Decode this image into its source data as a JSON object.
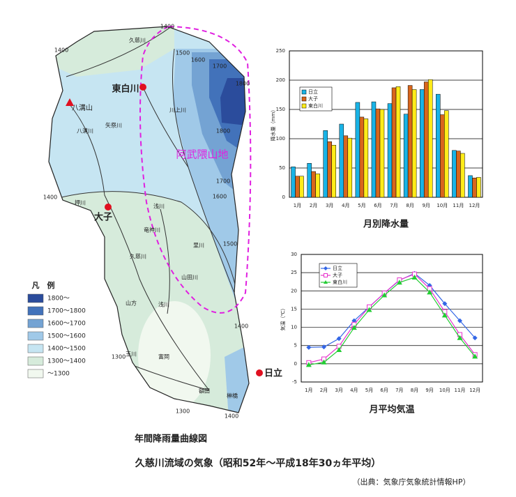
{
  "chart_data": [
    {
      "type": "bar",
      "title": "月別降水量",
      "y_label": "降水量（mm）",
      "categories": [
        "1月",
        "2月",
        "3月",
        "4月",
        "5月",
        "6月",
        "7月",
        "8月",
        "9月",
        "10月",
        "11月",
        "12月"
      ],
      "series": [
        {
          "name": "日立",
          "color": "#19b3e6",
          "values": [
            52,
            58,
            114,
            125,
            162,
            163,
            160,
            142,
            184,
            176,
            80,
            37
          ]
        },
        {
          "name": "大子",
          "color": "#d9661c",
          "values": [
            36,
            44,
            95,
            105,
            137,
            151,
            187,
            191,
            197,
            141,
            79,
            33
          ]
        },
        {
          "name": "東白川",
          "color": "#ffec1a",
          "values": [
            36,
            40,
            89,
            101,
            134,
            150,
            189,
            184,
            201,
            148,
            75,
            34
          ]
        }
      ],
      "ylim": [
        0,
        250
      ],
      "yticks": [
        0,
        50,
        100,
        150,
        200,
        250
      ],
      "grid": true,
      "legend": "upper left"
    },
    {
      "type": "line",
      "title": "月平均気温",
      "y_label": "気温（℃）",
      "categories": [
        "1月",
        "2月",
        "3月",
        "4月",
        "5月",
        "6月",
        "7月",
        "8月",
        "9月",
        "10月",
        "11月",
        "12月"
      ],
      "series": [
        {
          "name": "日立",
          "color": "#3366e6",
          "marker": "diamond",
          "values": [
            4.5,
            4.6,
            6.9,
            11.8,
            15.6,
            19.4,
            22.9,
            24.8,
            21.5,
            16.5,
            11.8,
            7.1
          ]
        },
        {
          "name": "大子",
          "color": "#e633cc",
          "marker": "square",
          "values": [
            0.3,
            1.3,
            4.8,
            10.8,
            15.6,
            19.4,
            23.0,
            24.6,
            20.6,
            14.3,
            8.0,
            2.5
          ]
        },
        {
          "name": "東白川",
          "color": "#22cc33",
          "marker": "triangle",
          "values": [
            -0.3,
            0.4,
            3.8,
            9.9,
            14.8,
            18.8,
            22.3,
            23.7,
            19.6,
            13.3,
            7.1,
            2.0
          ]
        }
      ],
      "ylim": [
        -5,
        30
      ],
      "yticks": [
        -5,
        0,
        5,
        10,
        15,
        20,
        25,
        30
      ],
      "grid": true,
      "legend": "upper left"
    }
  ],
  "map": {
    "caption": "年間降雨量曲線図",
    "labels": [
      "1400",
      "1500",
      "1600",
      "1700",
      "1800",
      "1800",
      "1700",
      "1600",
      "1500",
      "1400",
      "1400",
      "1400",
      "1300",
      "1300",
      "1400",
      "久慈川",
      "八溝川",
      "矢祭川",
      "川上川",
      "押川",
      "浅川",
      "竜神川",
      "久慈川",
      "里川",
      "山田川",
      "山方",
      "浅川",
      "玉川",
      "富岡",
      "額田",
      "榊橋"
    ],
    "places": [
      "東白川",
      "八溝山",
      "大子",
      "日立"
    ],
    "region": "阿武隈山地",
    "legend": {
      "title": "凡　例",
      "items": [
        {
          "label": "1800～",
          "color": "#2b4c9c"
        },
        {
          "label": "1700～1800",
          "color": "#4272ba"
        },
        {
          "label": "1600～1700",
          "color": "#74a3d3"
        },
        {
          "label": "1500～1600",
          "color": "#a0c9e8"
        },
        {
          "label": "1400～1500",
          "color": "#c6e5f2"
        },
        {
          "label": "1300～1400",
          "color": "#d6ebdb"
        },
        {
          "label": "～1300",
          "color": "#f1f8ef"
        }
      ]
    }
  },
  "footer": {
    "title": "久慈川流域の気象（昭和52年～平成18年30ヵ年平均）",
    "source": "（出典：気象庁気象統計情報HP）"
  }
}
